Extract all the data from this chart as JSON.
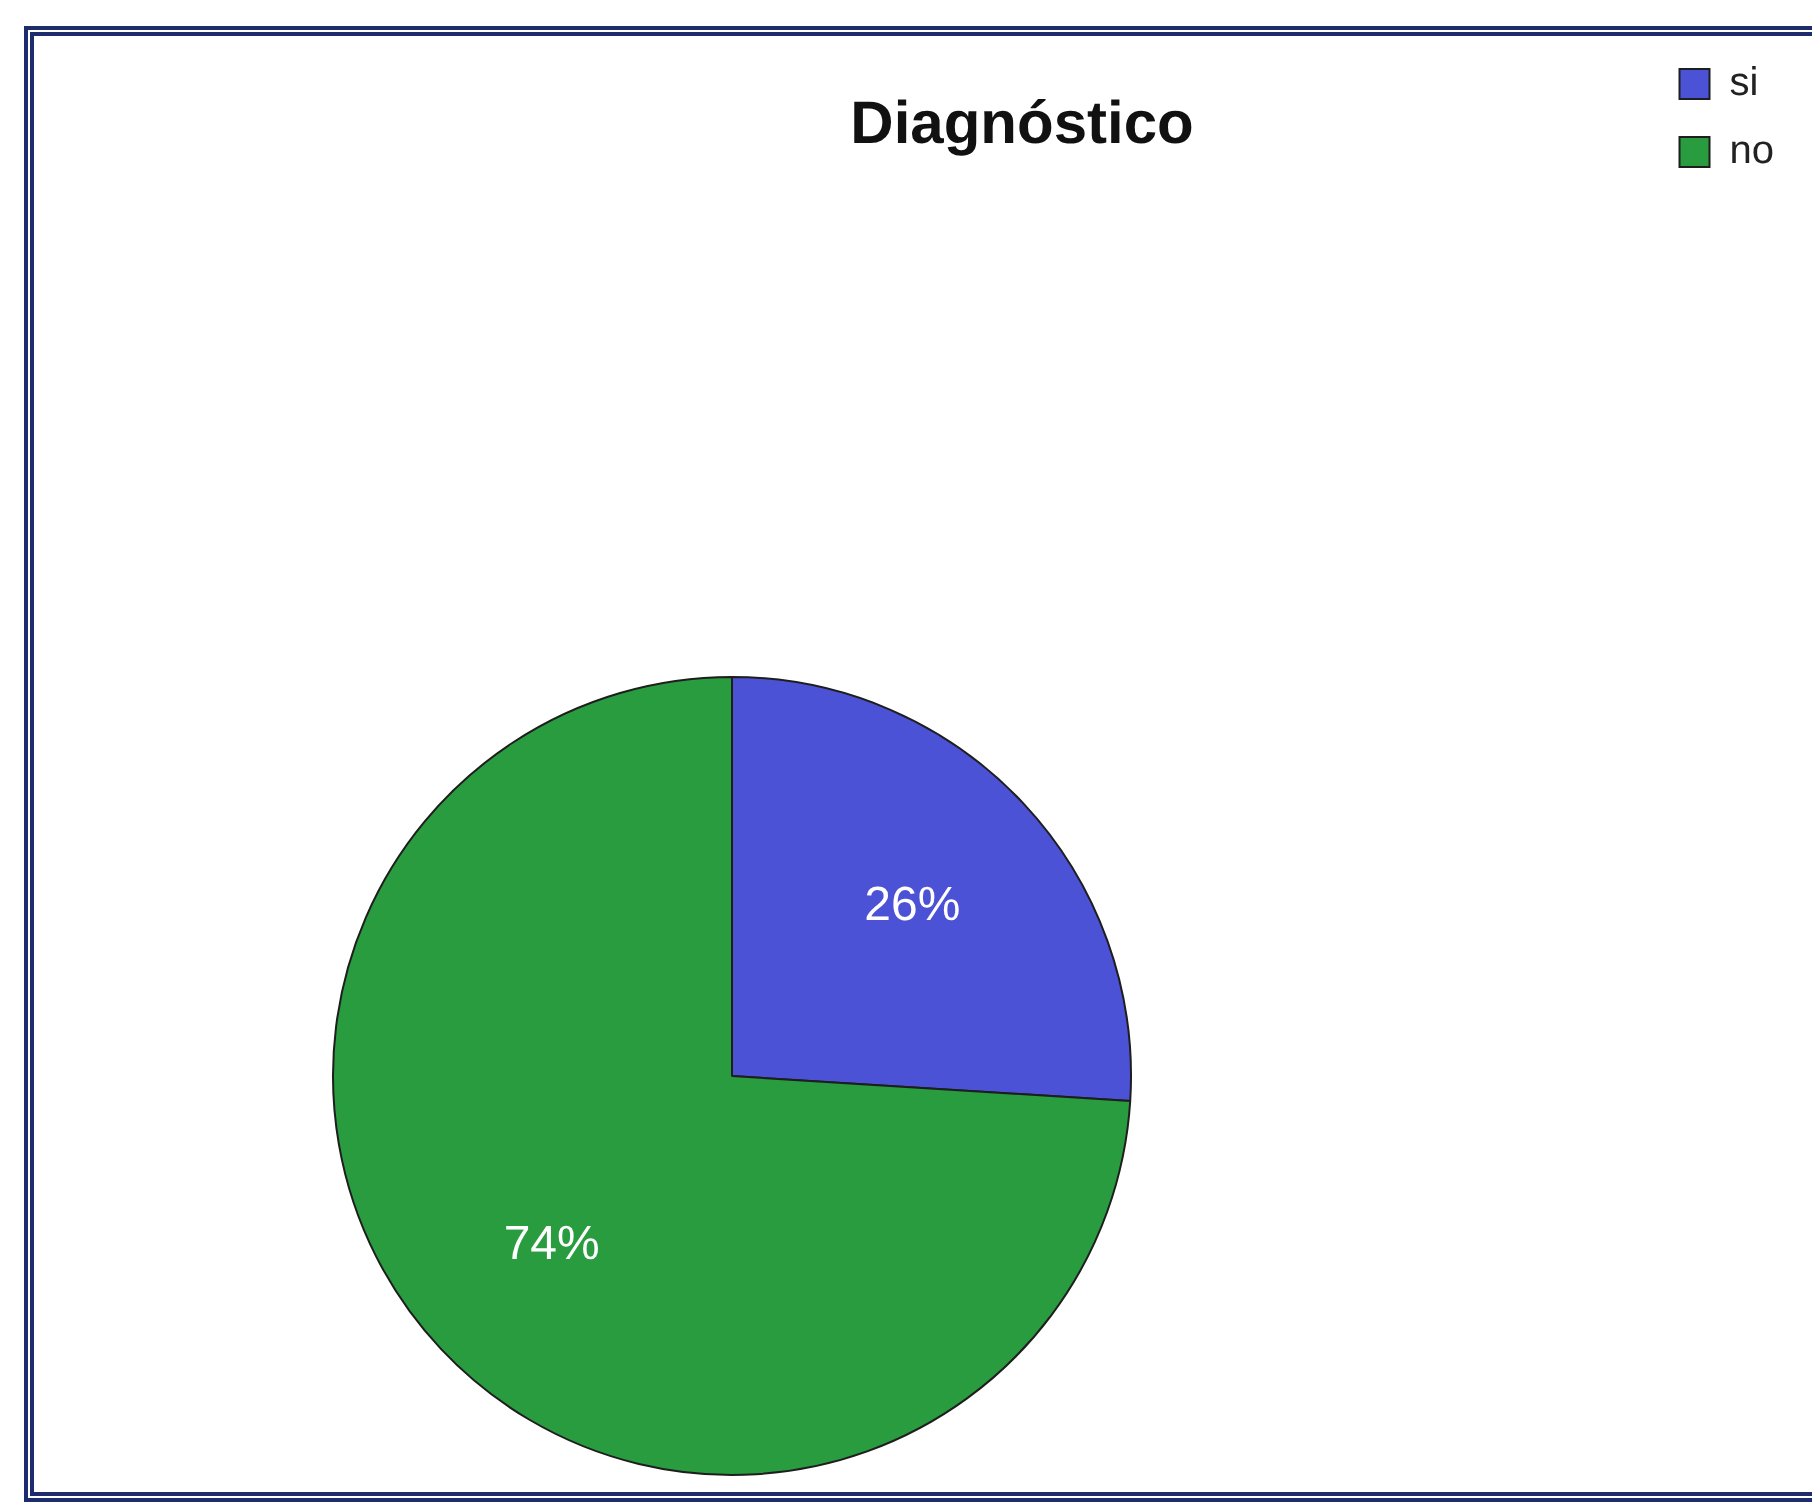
{
  "chart_data": {
    "type": "pie",
    "title": "Diagnóstico",
    "categories": [
      "si",
      "no"
    ],
    "values": [
      26,
      74
    ],
    "colors": [
      "#4b52d6",
      "#289c3e"
    ],
    "value_labels": [
      "26%",
      "74%"
    ],
    "legend": "top right"
  }
}
